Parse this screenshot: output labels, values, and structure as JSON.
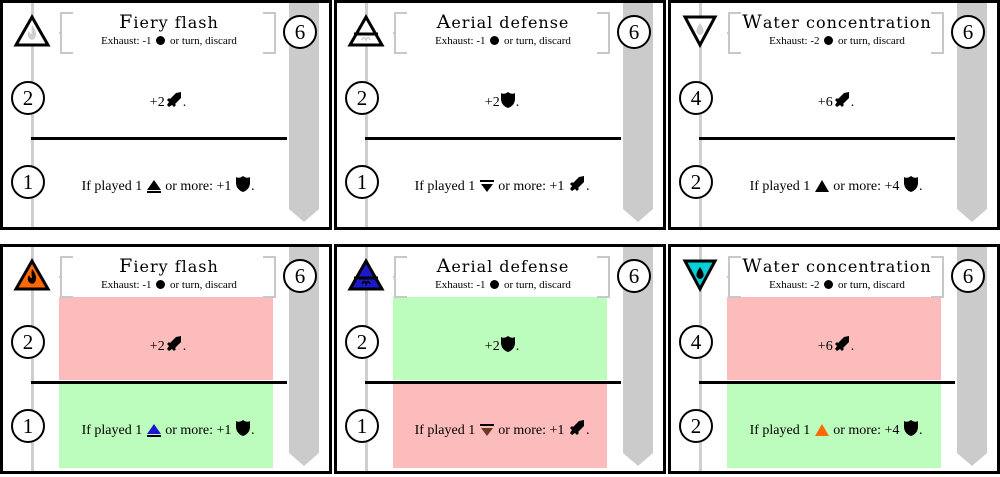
{
  "rows": [
    {
      "name": "top-row",
      "cards": [
        {
          "title": "Fiery flash",
          "subtitle": "Exhaust: -1",
          "subtitle_tail": "or turn, discard",
          "cost": "6",
          "element": "fire",
          "element_colored": false,
          "level1": "2",
          "level2": "1",
          "eff1_prefix": "+2",
          "eff1_icon": "sword",
          "eff1_suffix": ".",
          "eff2_prefix": "If played 1",
          "eff2_tri": "air",
          "eff2_mid": "or more: +1",
          "eff2_icon": "shield",
          "eff2_suffix": ".",
          "top_zone": "none",
          "bottom_zone": "none"
        },
        {
          "title": "Aerial defense",
          "subtitle": "Exhaust: -1",
          "subtitle_tail": "or turn, discard",
          "cost": "6",
          "element": "air",
          "element_colored": false,
          "level1": "2",
          "level2": "1",
          "eff1_prefix": "+2",
          "eff1_icon": "shield",
          "eff1_suffix": ".",
          "eff2_prefix": "If played 1",
          "eff2_tri": "earth",
          "eff2_mid": "or more: +1",
          "eff2_icon": "sword",
          "eff2_suffix": ".",
          "top_zone": "none",
          "bottom_zone": "none"
        },
        {
          "title": "Water concentration",
          "subtitle": "Exhaust: -2",
          "subtitle_tail": "or turn, discard",
          "cost": "6",
          "element": "water",
          "element_colored": false,
          "level1": "4",
          "level2": "2",
          "eff1_prefix": "+6",
          "eff1_icon": "sword",
          "eff1_suffix": ".",
          "eff2_prefix": "If played 1",
          "eff2_tri": "fire",
          "eff2_mid": "or more: +4",
          "eff2_icon": "shield",
          "eff2_suffix": ".",
          "top_zone": "none",
          "bottom_zone": "none"
        }
      ]
    },
    {
      "name": "bottom-row",
      "cards": [
        {
          "title": "Fiery flash",
          "subtitle": "Exhaust: -1",
          "subtitle_tail": "or turn, discard",
          "cost": "6",
          "element": "fire",
          "element_colored": true,
          "level1": "2",
          "level2": "1",
          "eff1_prefix": "+2",
          "eff1_icon": "sword",
          "eff1_suffix": ".",
          "eff2_prefix": "If played 1",
          "eff2_tri": "air",
          "eff2_mid": "or more: +1",
          "eff2_icon": "shield",
          "eff2_suffix": ".",
          "top_zone": "red",
          "bottom_zone": "green"
        },
        {
          "title": "Aerial defense",
          "subtitle": "Exhaust: -1",
          "subtitle_tail": "or turn, discard",
          "cost": "6",
          "element": "air",
          "element_colored": true,
          "level1": "2",
          "level2": "1",
          "eff1_prefix": "+2",
          "eff1_icon": "shield",
          "eff1_suffix": ".",
          "eff2_prefix": "If played 1",
          "eff2_tri": "earth",
          "eff2_mid": "or more: +1",
          "eff2_icon": "sword",
          "eff2_suffix": ".",
          "top_zone": "green",
          "bottom_zone": "red"
        },
        {
          "title": "Water concentration",
          "subtitle": "Exhaust: -2",
          "subtitle_tail": "or turn, discard",
          "cost": "6",
          "element": "water",
          "element_colored": true,
          "level1": "4",
          "level2": "2",
          "eff1_prefix": "+6",
          "eff1_icon": "sword",
          "eff1_suffix": ".",
          "eff2_prefix": "If played 1",
          "eff2_tri": "fire",
          "eff2_mid": "or more: +4",
          "eff2_icon": "shield",
          "eff2_suffix": ".",
          "top_zone": "red",
          "bottom_zone": "green"
        }
      ]
    }
  ],
  "colors": {
    "fire": "#ff6a00",
    "air": "#1a1acc",
    "earth": "#6b3a1e",
    "water": "#00d0d8",
    "zone_red": "#fcbcbc",
    "zone_green": "#bcfcbc",
    "ribbon": "#cbcbcb"
  }
}
